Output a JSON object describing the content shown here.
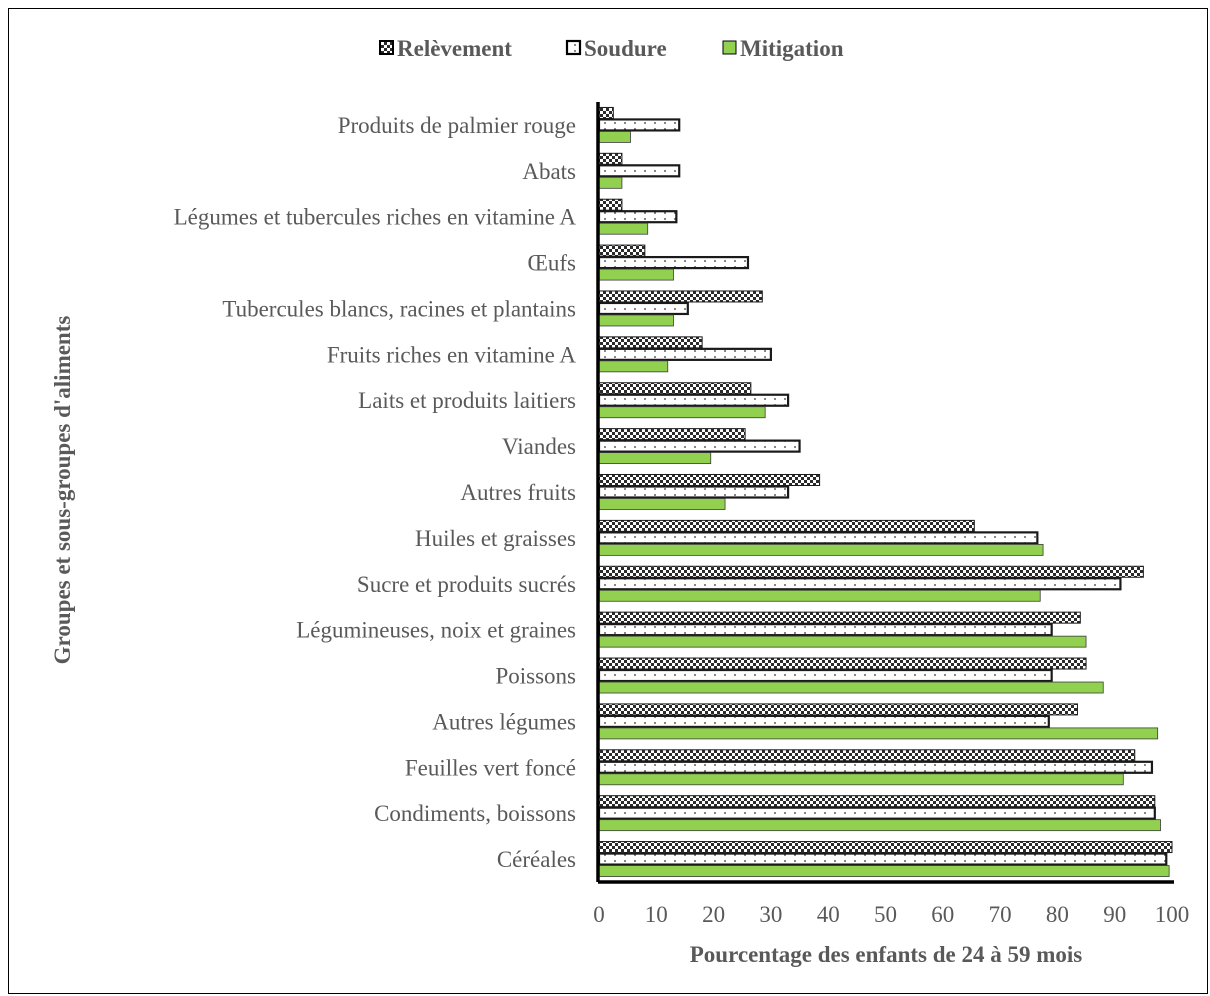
{
  "chart_data": {
    "type": "bar",
    "orientation": "horizontal",
    "categories": [
      "Produits de palmier rouge",
      "Abats",
      "Légumes et tubercules riches en vitamine A",
      "Œufs",
      "Tubercules blancs, racines et plantains",
      "Fruits riches en vitamine A",
      "Laits et produits laitiers",
      "Viandes",
      "Autres fruits",
      "Huiles et graisses",
      "Sucre et produits sucrés",
      "Légumineuses, noix et graines",
      "Poissons",
      "Autres légumes",
      "Feuilles vert foncé",
      "Condiments, boissons",
      "Céréales"
    ],
    "series": [
      {
        "name": "Relèvement",
        "values": [
          2.5,
          4,
          4,
          8,
          28.5,
          18,
          26.5,
          25.5,
          38.5,
          65.5,
          95,
          84,
          85,
          83.5,
          93.5,
          97,
          100
        ]
      },
      {
        "name": "Soudure",
        "values": [
          14,
          14,
          13.5,
          26,
          15.5,
          30,
          33,
          35,
          33,
          76.5,
          91,
          79,
          79,
          78.5,
          96.5,
          97,
          99
        ]
      },
      {
        "name": "Mitigation",
        "values": [
          5.5,
          4,
          8.5,
          13,
          13,
          12,
          29,
          19.5,
          22,
          77.5,
          77,
          85,
          88,
          97.5,
          91.5,
          98,
          99.5
        ]
      }
    ],
    "xlabel": "Pourcentage des enfants de 24 à 59 mois",
    "ylabel": "Groupes et sous-groupes d'aliments",
    "xlim": [
      0,
      100
    ],
    "xticks": [
      "0",
      "10",
      "20",
      "30",
      "40",
      "50",
      "60",
      "70",
      "80",
      "90",
      "100"
    ],
    "legend_position": "top",
    "grid": false,
    "colors": {
      "mitigation": "#92d050",
      "outline": "#1a1a1a",
      "text": "#595959"
    }
  }
}
